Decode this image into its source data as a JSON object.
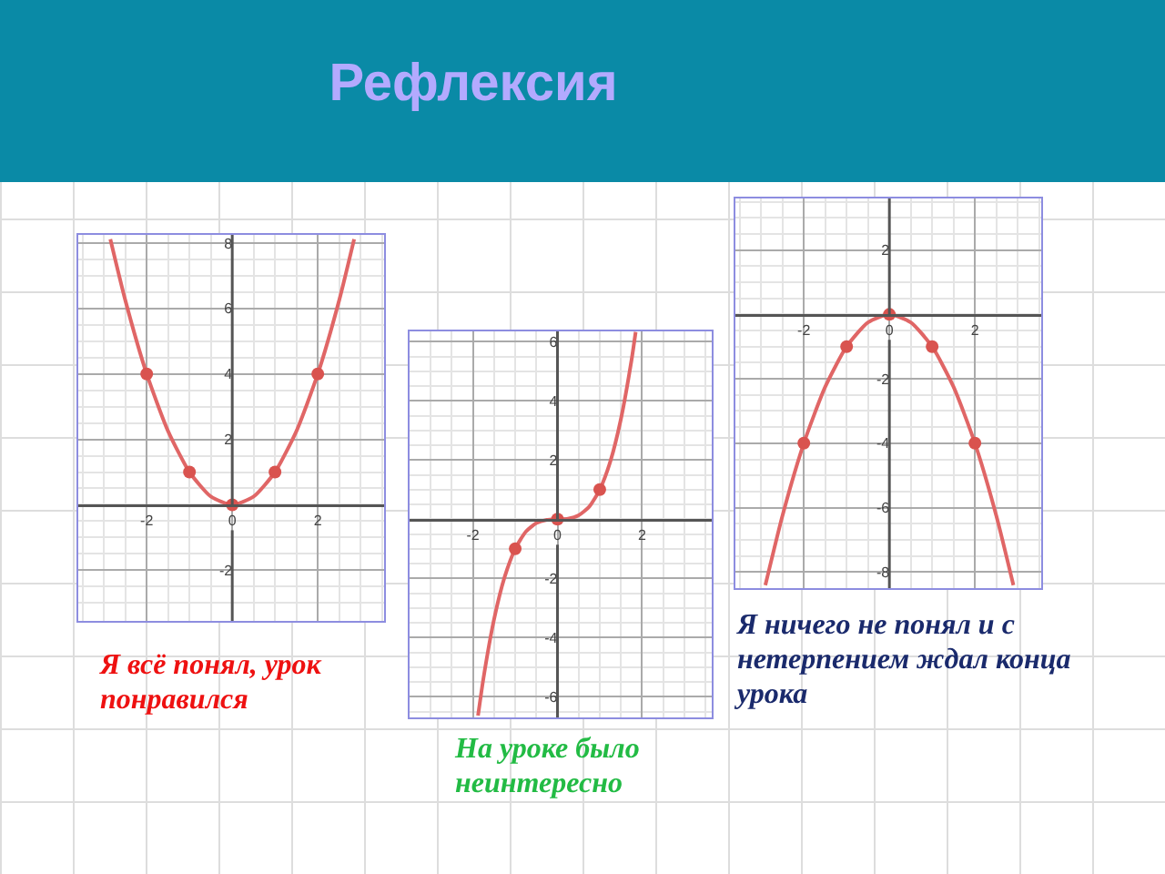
{
  "chart_data": [
    {
      "type": "line",
      "title": "Рефлексия",
      "annotations": [
        "Я всё понял, урок понравился"
      ],
      "xlim": [
        -3.6,
        3.55
      ],
      "ylim": [
        -3.55,
        8.25
      ],
      "xticks": [
        -2,
        0,
        2
      ],
      "yticks": [
        -2,
        2,
        4,
        6,
        8
      ],
      "grid": true,
      "series": [
        {
          "type": "line",
          "color": "#e06666",
          "marker": "none",
          "x": [
            -2.85,
            -2.5,
            -2,
            -1.5,
            -1,
            -0.5,
            0,
            0.5,
            1,
            1.5,
            2,
            2.5,
            2.85
          ],
          "values": [
            8.12,
            6.25,
            4,
            2.25,
            1,
            0.25,
            0,
            0.25,
            1,
            2.25,
            4,
            6.25,
            8.12
          ]
        },
        {
          "type": "scatter",
          "color": "#d9534f",
          "marker": "circle",
          "x": [
            -2,
            -1,
            0,
            1,
            2
          ],
          "values": [
            4,
            1,
            0,
            1,
            4
          ]
        }
      ]
    },
    {
      "type": "line",
      "annotations": [
        "На уроке было неинтересно"
      ],
      "xlim": [
        -3.5,
        3.65
      ],
      "ylim": [
        -6.7,
        6.35
      ],
      "xticks": [
        -2,
        0,
        2
      ],
      "yticks": [
        -6,
        -4,
        -2,
        2,
        4,
        6
      ],
      "grid": true,
      "series": [
        {
          "type": "line",
          "color": "#e06666",
          "marker": "none",
          "x": [
            -1.88,
            -1.75,
            -1.5,
            -1.25,
            -1,
            -0.75,
            -0.5,
            -0.25,
            0,
            0.25,
            0.5,
            0.75,
            1,
            1.25,
            1.5,
            1.75,
            1.85
          ],
          "values": [
            -6.64,
            -5.36,
            -3.38,
            -1.95,
            -1,
            -0.42,
            -0.13,
            -0.02,
            0,
            0.02,
            0.13,
            0.42,
            1,
            1.95,
            3.38,
            5.36,
            6.33
          ]
        },
        {
          "type": "scatter",
          "color": "#d9534f",
          "marker": "circle",
          "x": [
            -1,
            0,
            1
          ],
          "values": [
            -1,
            0,
            1
          ]
        }
      ]
    },
    {
      "type": "line",
      "annotations": [
        "Я ничего не понял и с нетерпением ждал конца урока"
      ],
      "xlim": [
        -3.6,
        3.55
      ],
      "ylim": [
        -8.5,
        3.6
      ],
      "xticks": [
        -2,
        0,
        2
      ],
      "yticks": [
        -8,
        -6,
        -4,
        -2,
        2
      ],
      "grid": true,
      "series": [
        {
          "type": "line",
          "color": "#e06666",
          "marker": "none",
          "x": [
            -2.9,
            -2.5,
            -2,
            -1.5,
            -1,
            -0.5,
            0,
            0.5,
            1,
            1.5,
            2,
            2.5,
            2.9
          ],
          "values": [
            -8.41,
            -6.25,
            -4,
            -2.25,
            -1,
            -0.25,
            0,
            -0.25,
            -1,
            -2.25,
            -4,
            -6.25,
            -8.41
          ]
        },
        {
          "type": "scatter",
          "color": "#d9534f",
          "marker": "circle",
          "x": [
            -2,
            -1,
            0,
            1,
            2
          ],
          "values": [
            -4,
            -1,
            0,
            -1,
            -4
          ]
        }
      ]
    }
  ]
}
